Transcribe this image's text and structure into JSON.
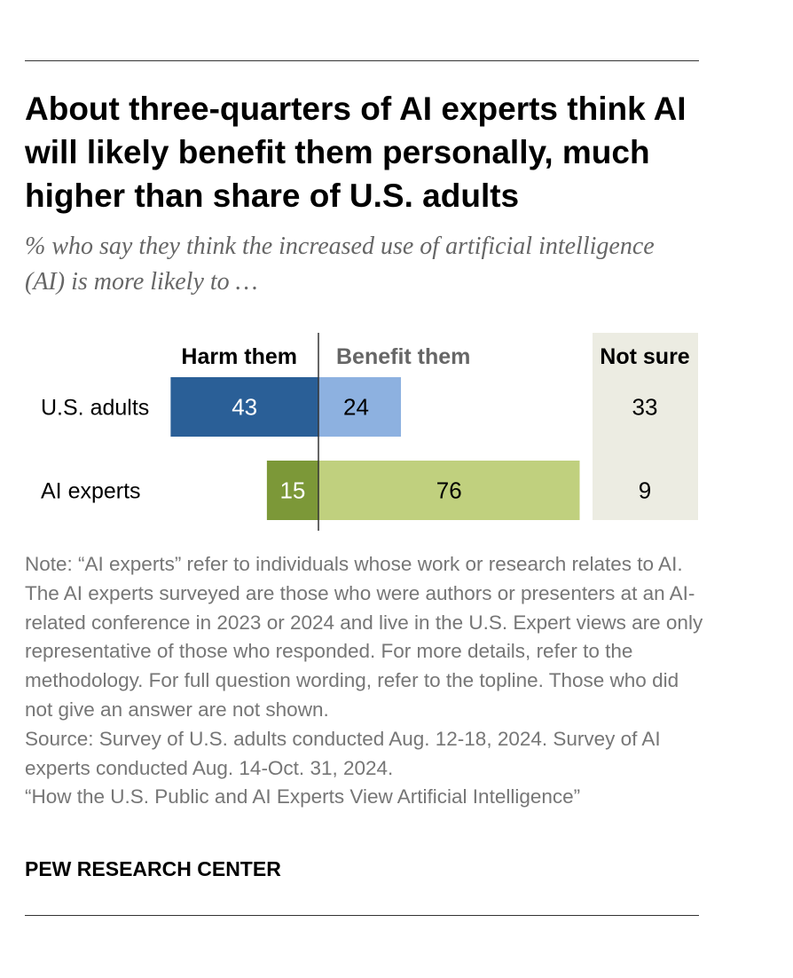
{
  "title": "About three-quarters of AI experts think AI will likely benefit them personally, much higher than share of U.S. adults",
  "subtitle": "% who say they think the increased use of artificial intelligence (AI) is more likely to …",
  "chart_data": {
    "type": "bar",
    "orientation": "horizontal",
    "stacking": "diverging",
    "categories": [
      "U.S. adults",
      "AI experts"
    ],
    "series": [
      {
        "name": "Harm them",
        "values": [
          43,
          15
        ],
        "colors": [
          "#2a5f97",
          "#7c9838"
        ]
      },
      {
        "name": "Benefit them",
        "values": [
          24,
          76
        ],
        "colors": [
          "#8db1e0",
          "#c0d07e"
        ]
      },
      {
        "name": "Not sure",
        "values": [
          33,
          9
        ],
        "column_background": "#ecece2"
      }
    ],
    "data_labels": {
      "harm": [
        "43",
        "15"
      ],
      "benefit": [
        "24",
        "76"
      ],
      "not_sure": [
        "33",
        "9"
      ]
    },
    "legend_placement": "top (column headers)",
    "grid": false
  },
  "note": "Note: “AI experts” refer to individuals whose work or research relates to AI. The AI experts surveyed are those who were authors or presenters at an AI-related conference in 2023 or 2024 and live in the U.S. Expert views are only representative of those who responded. For more details, refer to the methodology. For full question wording, refer to the topline. Those who did not give an answer are not shown.",
  "source": "Source: Survey of U.S. adults conducted Aug. 12-18, 2024. Survey of AI experts conducted Aug. 14-Oct. 31, 2024.",
  "report_title": "“How the U.S. Public and AI Experts View Artificial Intelligence”",
  "brand": "PEW RESEARCH CENTER"
}
